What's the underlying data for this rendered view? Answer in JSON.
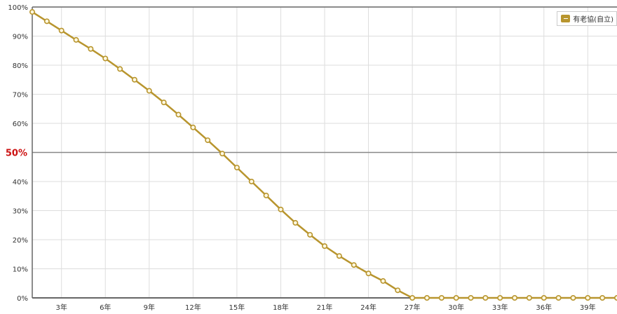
{
  "chart_data": {
    "type": "line",
    "title": "",
    "xlabel": "",
    "ylabel": "",
    "ylim": [
      0,
      100
    ],
    "grid": true,
    "legend_position": "top-right",
    "y_ticks": [
      "0%",
      "10%",
      "20%",
      "30%",
      "40%",
      "50%",
      "60%",
      "70%",
      "80%",
      "90%",
      "100%"
    ],
    "x_ticks": [
      "3年",
      "6年",
      "9年",
      "12年",
      "15年",
      "18年",
      "21年",
      "24年",
      "27年",
      "30年",
      "33年",
      "36年",
      "39年"
    ],
    "x_tick_values": [
      3,
      6,
      9,
      12,
      15,
      18,
      21,
      24,
      27,
      30,
      33,
      36,
      39
    ],
    "xlim": [
      1,
      41
    ],
    "highlight": {
      "y": 50,
      "label": "50%",
      "color": "#cc1111"
    },
    "series": [
      {
        "name": "有老協(自立)",
        "color": "#b8952e",
        "x": [
          1,
          2,
          3,
          4,
          5,
          6,
          7,
          8,
          9,
          10,
          11,
          12,
          13,
          14,
          15,
          16,
          17,
          18,
          19,
          20,
          21,
          22,
          23,
          24,
          25,
          26,
          27,
          28,
          29,
          30,
          31,
          32,
          33,
          34,
          35,
          36,
          37,
          38,
          39,
          40,
          41
        ],
        "values": [
          98.3,
          95.1,
          91.9,
          88.7,
          85.6,
          82.3,
          78.7,
          75.0,
          71.2,
          67.2,
          63.0,
          58.6,
          54.2,
          49.6,
          44.8,
          40.0,
          35.2,
          30.4,
          25.8,
          21.7,
          17.8,
          14.4,
          11.3,
          8.4,
          5.8,
          2.6,
          0,
          0,
          0,
          0,
          0,
          0,
          0,
          0,
          0,
          0,
          0,
          0,
          0,
          0,
          0
        ]
      }
    ]
  }
}
